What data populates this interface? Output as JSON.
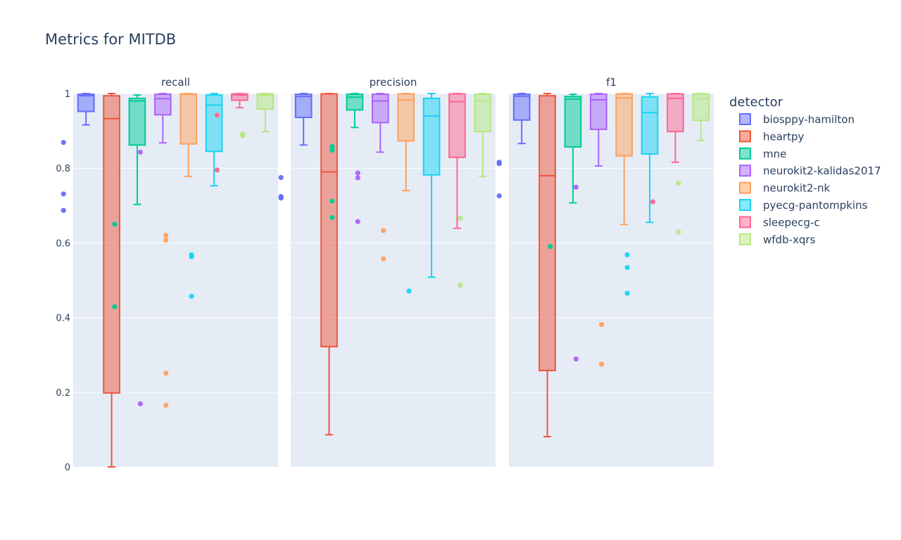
{
  "chart_data": {
    "type": "box",
    "title": "Metrics for MITDB",
    "facet_label_key": "metric",
    "ylim": [
      0,
      1
    ],
    "yticks": [
      0,
      0.2,
      0.4,
      0.6,
      0.8,
      1
    ],
    "ytick_labels": [
      "0",
      "0.2",
      "0.4",
      "0.6",
      "0.8",
      "1"
    ],
    "legend": {
      "title": "detector",
      "position": "right",
      "items": [
        {
          "name": "biosppy-hamilton",
          "color": "#636efa"
        },
        {
          "name": "heartpy",
          "color": "#ef553b"
        },
        {
          "name": "mne",
          "color": "#00cc96"
        },
        {
          "name": "neurokit2-kalidas2017",
          "color": "#ab63fa"
        },
        {
          "name": "neurokit2-nk",
          "color": "#ffa15a"
        },
        {
          "name": "pyecg-pantompkins",
          "color": "#19d3f3"
        },
        {
          "name": "sleepecg-c",
          "color": "#ff6692"
        },
        {
          "name": "wfdb-xqrs",
          "color": "#b6e880"
        }
      ]
    },
    "panels": [
      {
        "metric": "recall",
        "boxes": [
          {
            "detector": "biosppy-hamilton",
            "q1": 0.952,
            "median": 0.994,
            "q3": 0.998,
            "lower_fence": 0.916,
            "upper_fence": 1.0,
            "outliers": [
              0.869,
              0.731,
              0.687
            ]
          },
          {
            "detector": "heartpy",
            "q1": 0.198,
            "median": 0.933,
            "q3": 0.994,
            "lower_fence": 0.0,
            "upper_fence": 1.0,
            "outliers": []
          },
          {
            "detector": "mne",
            "q1": 0.862,
            "median": 0.98,
            "q3": 0.987,
            "lower_fence": 0.703,
            "upper_fence": 0.996,
            "outliers": [
              0.65,
              0.429
            ]
          },
          {
            "detector": "neurokit2-kalidas2017",
            "q1": 0.943,
            "median": 0.986,
            "q3": 0.998,
            "lower_fence": 0.868,
            "upper_fence": 1.0,
            "outliers": [
              0.843,
              0.169
            ]
          },
          {
            "detector": "neurokit2-nk",
            "q1": 0.865,
            "median": 0.998,
            "q3": 0.999,
            "lower_fence": 0.778,
            "upper_fence": 1.0,
            "outliers": [
              0.62,
              0.607,
              0.251,
              0.165
            ]
          },
          {
            "detector": "pyecg-pantompkins",
            "q1": 0.845,
            "median": 0.969,
            "q3": 0.996,
            "lower_fence": 0.753,
            "upper_fence": 1.0,
            "outliers": [
              0.568,
              0.563,
              0.457
            ]
          },
          {
            "detector": "sleepecg-c",
            "q1": 0.982,
            "median": 0.996,
            "q3": 0.999,
            "lower_fence": 0.962,
            "upper_fence": 1.0,
            "outliers": [
              0.942,
              0.795
            ]
          },
          {
            "detector": "wfdb-xqrs",
            "q1": 0.958,
            "median": 0.995,
            "q3": 0.999,
            "lower_fence": 0.898,
            "upper_fence": 1.0,
            "outliers": [
              0.892,
              0.887
            ]
          }
        ]
      },
      {
        "metric": "precision",
        "boxes": [
          {
            "detector": "biosppy-hamilton",
            "q1": 0.936,
            "median": 0.992,
            "q3": 0.998,
            "lower_fence": 0.862,
            "upper_fence": 1.0,
            "outliers": [
              0.775,
              0.724,
              0.72
            ]
          },
          {
            "detector": "heartpy",
            "q1": 0.322,
            "median": 0.79,
            "q3": 0.999,
            "lower_fence": 0.086,
            "upper_fence": 1.0,
            "outliers": []
          },
          {
            "detector": "mne",
            "q1": 0.956,
            "median": 0.99,
            "q3": 0.998,
            "lower_fence": 0.909,
            "upper_fence": 1.0,
            "outliers": [
              0.858,
              0.848,
              0.712,
              0.668
            ]
          },
          {
            "detector": "neurokit2-kalidas2017",
            "q1": 0.922,
            "median": 0.98,
            "q3": 0.998,
            "lower_fence": 0.843,
            "upper_fence": 1.0,
            "outliers": [
              0.787,
              0.774,
              0.657
            ]
          },
          {
            "detector": "neurokit2-nk",
            "q1": 0.873,
            "median": 0.983,
            "q3": 0.999,
            "lower_fence": 0.74,
            "upper_fence": 1.0,
            "outliers": [
              0.633,
              0.557
            ]
          },
          {
            "detector": "pyecg-pantompkins",
            "q1": 0.782,
            "median": 0.94,
            "q3": 0.987,
            "lower_fence": 0.508,
            "upper_fence": 1.0,
            "outliers": [
              0.471
            ]
          },
          {
            "detector": "sleepecg-c",
            "q1": 0.829,
            "median": 0.978,
            "q3": 0.999,
            "lower_fence": 0.639,
            "upper_fence": 1.0,
            "outliers": []
          },
          {
            "detector": "wfdb-xqrs",
            "q1": 0.898,
            "median": 0.98,
            "q3": 0.998,
            "lower_fence": 0.778,
            "upper_fence": 1.0,
            "outliers": [
              0.666,
              0.487
            ]
          }
        ]
      },
      {
        "metric": "f1",
        "boxes": [
          {
            "detector": "biosppy-hamilton",
            "q1": 0.929,
            "median": 0.993,
            "q3": 0.998,
            "lower_fence": 0.866,
            "upper_fence": 1.0,
            "outliers": [
              0.816,
              0.812,
              0.726
            ]
          },
          {
            "detector": "heartpy",
            "q1": 0.258,
            "median": 0.78,
            "q3": 0.994,
            "lower_fence": 0.081,
            "upper_fence": 1.0,
            "outliers": []
          },
          {
            "detector": "mne",
            "q1": 0.857,
            "median": 0.985,
            "q3": 0.992,
            "lower_fence": 0.707,
            "upper_fence": 0.998,
            "outliers": [
              0.59
            ]
          },
          {
            "detector": "neurokit2-kalidas2017",
            "q1": 0.904,
            "median": 0.983,
            "q3": 0.998,
            "lower_fence": 0.806,
            "upper_fence": 1.0,
            "outliers": [
              0.749,
              0.289
            ]
          },
          {
            "detector": "neurokit2-nk",
            "q1": 0.833,
            "median": 0.988,
            "q3": 0.999,
            "lower_fence": 0.649,
            "upper_fence": 1.0,
            "outliers": [
              0.381,
              0.275
            ]
          },
          {
            "detector": "pyecg-pantompkins",
            "q1": 0.838,
            "median": 0.949,
            "q3": 0.991,
            "lower_fence": 0.655,
            "upper_fence": 1.0,
            "outliers": [
              0.568,
              0.534,
              0.465
            ]
          },
          {
            "detector": "sleepecg-c",
            "q1": 0.898,
            "median": 0.987,
            "q3": 0.999,
            "lower_fence": 0.816,
            "upper_fence": 1.0,
            "outliers": [
              0.71
            ]
          },
          {
            "detector": "wfdb-xqrs",
            "q1": 0.928,
            "median": 0.986,
            "q3": 0.999,
            "lower_fence": 0.874,
            "upper_fence": 1.0,
            "outliers": [
              0.76,
              0.629
            ]
          }
        ]
      }
    ]
  }
}
